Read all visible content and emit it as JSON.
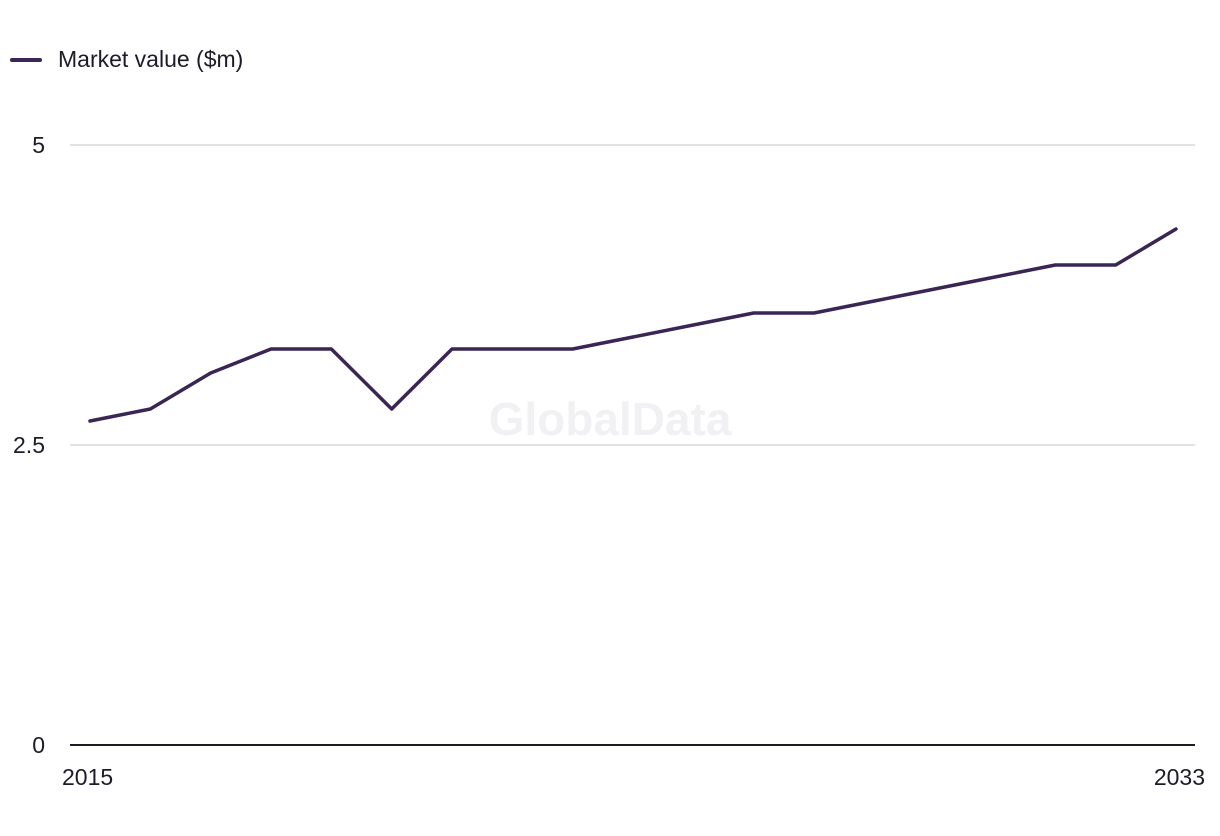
{
  "chart_data": {
    "type": "line",
    "legend": {
      "position": "top-left"
    },
    "series": [
      {
        "name": "Market value ($m)",
        "color": "#3a2554",
        "values": [
          2.7,
          2.8,
          3.1,
          3.3,
          3.3,
          2.8,
          3.3,
          3.3,
          3.3,
          3.4,
          3.5,
          3.6,
          3.6,
          3.7,
          3.8,
          3.9,
          4.0,
          4.0,
          4.3
        ]
      }
    ],
    "x": [
      2015,
      2016,
      2017,
      2018,
      2019,
      2020,
      2021,
      2022,
      2023,
      2024,
      2025,
      2026,
      2027,
      2028,
      2029,
      2030,
      2031,
      2032,
      2033
    ],
    "x_tick_labels": [
      "2015",
      "2033"
    ],
    "y_ticks": [
      0,
      2.5,
      5
    ],
    "y_tick_labels": [
      "0",
      "2.5",
      "5"
    ],
    "ylim": [
      0,
      5
    ],
    "grid": true,
    "watermark": "GlobalData"
  },
  "colors": {
    "line": "#3a2554",
    "grid": "#d9d9de",
    "axis": "#1c1c28"
  }
}
